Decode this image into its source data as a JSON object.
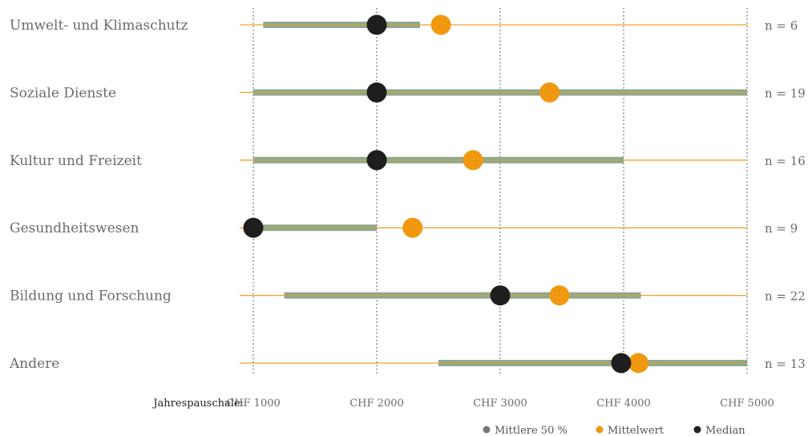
{
  "chart_data": {
    "type": "range-dot",
    "categories": [
      "Umwelt- und Klimaschutz",
      "Soziale Dienste",
      "Kultur und Freizeit",
      "Gesundheitswesen",
      "Bildung und Forschung",
      "Andere"
    ],
    "n_labels": [
      "n = 6",
      "n = 19",
      "n = 16",
      "n = 9",
      "n = 22",
      "n = 13"
    ],
    "iqr": [
      [
        1080,
        2350
      ],
      [
        1000,
        5000
      ],
      [
        1000,
        4000
      ],
      [
        1000,
        2000
      ],
      [
        1250,
        4140
      ],
      [
        2500,
        5000
      ]
    ],
    "mean": [
      2520,
      3400,
      2780,
      2290,
      3480,
      4120
    ],
    "median": [
      2000,
      2000,
      2000,
      1000,
      3000,
      3980
    ],
    "x_axis": {
      "title": "Jahrespauschale:",
      "ticks": [
        1000,
        2000,
        3000,
        4000,
        5000
      ],
      "tick_labels": [
        "CHF 1000",
        "CHF 2000",
        "CHF 3000",
        "CHF 4000",
        "CHF 5000"
      ],
      "range": [
        1000,
        5000
      ]
    },
    "legend": {
      "placement": "bottom-right",
      "items": [
        {
          "label": "Mittlere 50 %",
          "color": "#777777"
        },
        {
          "label": "Mittelwert",
          "color": "#f0980f"
        },
        {
          "label": "Median",
          "color": "#222222"
        }
      ]
    },
    "colors": {
      "baseline": "#f0a030",
      "iqr_bar": "#8ea88e",
      "iqr_center": "#d6a23a",
      "mean": "#f0980f",
      "median": "#1e1e1e",
      "grid": "#555555"
    }
  }
}
